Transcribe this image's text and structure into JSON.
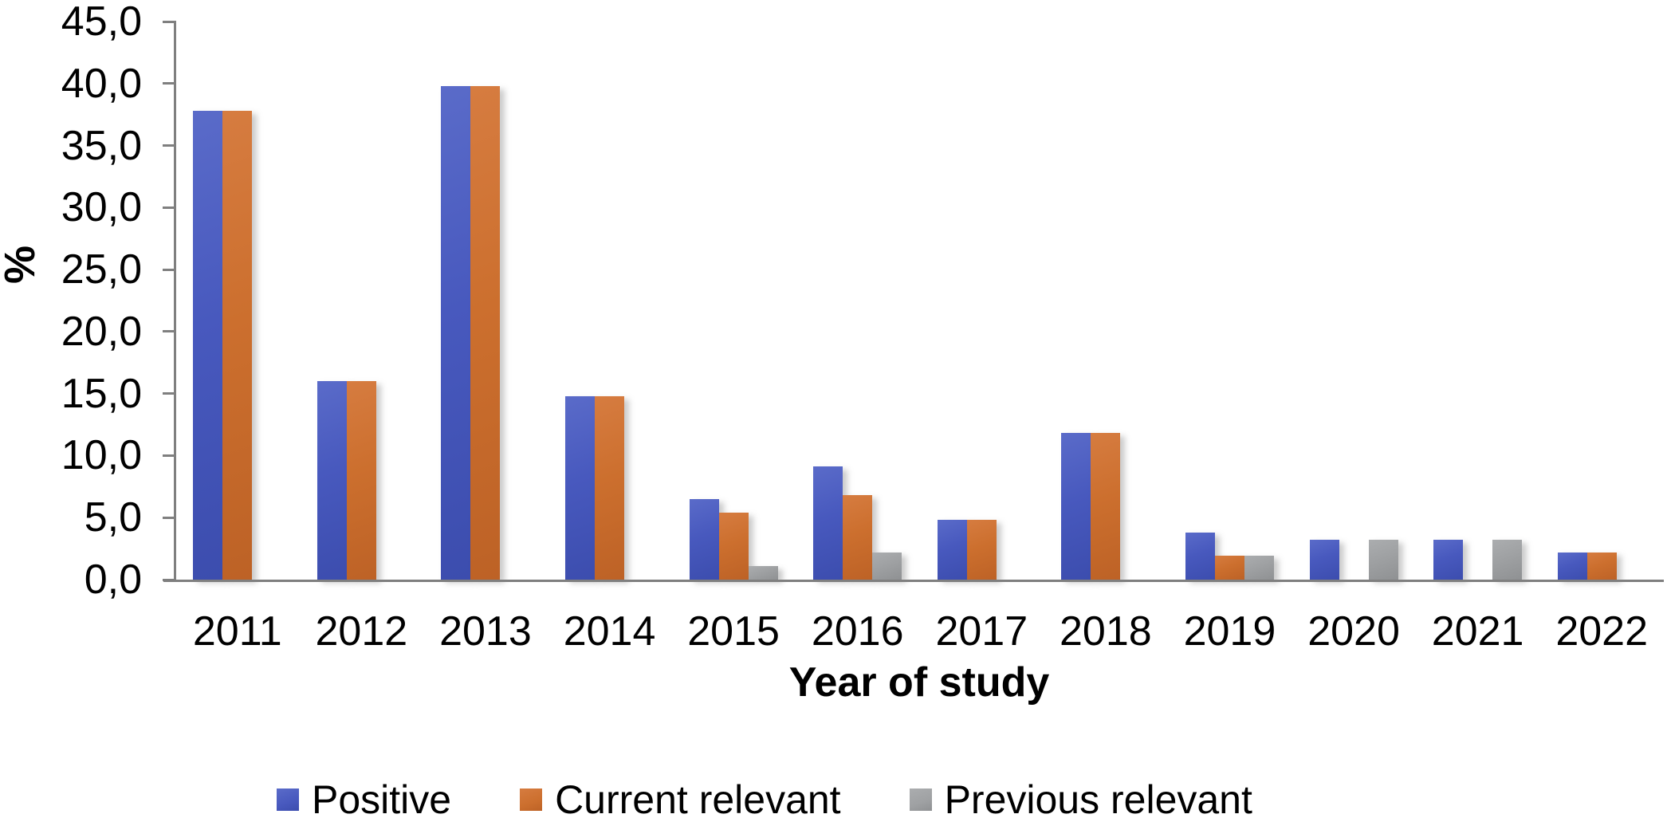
{
  "chart_data": {
    "type": "bar",
    "title": "",
    "categories": [
      "2011",
      "2012",
      "2013",
      "2014",
      "2015",
      "2016",
      "2017",
      "2018",
      "2019",
      "2020",
      "2021",
      "2022"
    ],
    "series": [
      {
        "name": "Positive",
        "color": "#4859BE",
        "color_light": "#5A6BC9",
        "color_dark": "#3C4DAE",
        "values": [
          37.8,
          16.0,
          39.8,
          14.8,
          6.5,
          9.1,
          4.8,
          11.8,
          3.8,
          3.2,
          3.2,
          2.2
        ]
      },
      {
        "name": "Current relevant",
        "color": "#CC6F2E",
        "color_light": "#D67C40",
        "color_dark": "#BD6226",
        "values": [
          37.8,
          16.0,
          39.8,
          14.8,
          5.4,
          6.8,
          4.8,
          11.8,
          1.9,
          0,
          0,
          2.2
        ]
      },
      {
        "name": "Previous relevant",
        "color": "#9FA1A3",
        "color_light": "#ABADAF",
        "color_dark": "#8F9193",
        "values": [
          0,
          0,
          0,
          0,
          1.1,
          2.2,
          0,
          0,
          1.9,
          3.2,
          3.2,
          0
        ]
      }
    ],
    "xlabel": "Year of study",
    "ylabel": "%",
    "ylim": [
      0,
      45
    ],
    "ytick_step": 5,
    "ytick_labels": [
      "0,0",
      "5,0",
      "10,0",
      "15,0",
      "20,0",
      "25,0",
      "30,0",
      "35,0",
      "40,0",
      "45,0"
    ],
    "grid": false,
    "legend_position": "bottom"
  },
  "axis": {
    "color": "#7f7f7f"
  }
}
